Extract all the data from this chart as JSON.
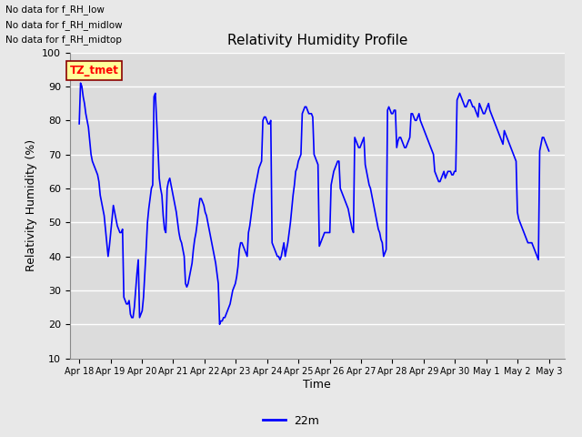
{
  "title": "Relativity Humidity Profile",
  "xlabel": "Time",
  "ylabel": "Relativity Humidity (%)",
  "ylim": [
    10,
    100
  ],
  "yticks": [
    10,
    20,
    30,
    40,
    50,
    60,
    70,
    80,
    90,
    100
  ],
  "line_color": "blue",
  "line_width": 1.2,
  "legend_label": "22m",
  "legend_line_color": "blue",
  "no_data_texts": [
    "No data for f_RH_low",
    "No data for f_RH_midlow",
    "No data for f_RH_midtop"
  ],
  "tz_label": "TZ_tmet",
  "tz_bg_color": "#FFFF99",
  "tz_text_color": "red",
  "bg_color": "#E8E8E8",
  "plot_bg_color": "#DCDCDC",
  "grid_color": "white",
  "tick_dates": [
    "Apr 18",
    "Apr 19",
    "Apr 20",
    "Apr 21",
    "Apr 22",
    "Apr 23",
    "Apr 24",
    "Apr 25",
    "Apr 26",
    "Apr 27",
    "Apr 28",
    "Apr 29",
    "Apr 30",
    "May 1",
    "May 2",
    "May 3"
  ],
  "rh_values": [
    79,
    91,
    90,
    87,
    85,
    82,
    80,
    78,
    74,
    70,
    68,
    67,
    66,
    65,
    64,
    62,
    58,
    56,
    54,
    52,
    48,
    44,
    40,
    43,
    47,
    51,
    55,
    53,
    51,
    49,
    48,
    47,
    47,
    48,
    28,
    27,
    26,
    26,
    27,
    23,
    22,
    22,
    25,
    30,
    35,
    39,
    22,
    23,
    24,
    28,
    35,
    42,
    50,
    54,
    57,
    60,
    61,
    87,
    88,
    80,
    72,
    63,
    60,
    58,
    52,
    48,
    47,
    60,
    62,
    63,
    61,
    59,
    57,
    55,
    53,
    50,
    47,
    45,
    44,
    42,
    40,
    32,
    31,
    32,
    34,
    36,
    38,
    42,
    45,
    47,
    50,
    54,
    57,
    57,
    56,
    55,
    53,
    52,
    50,
    48,
    46,
    44,
    42,
    40,
    38,
    35,
    32,
    20,
    21,
    21,
    22,
    22,
    23,
    24,
    25,
    26,
    28,
    30,
    31,
    32,
    34,
    37,
    42,
    44,
    44,
    43,
    42,
    41,
    40,
    47,
    49,
    52,
    55,
    58,
    60,
    62,
    64,
    66,
    67,
    68,
    80,
    81,
    81,
    80,
    79,
    79,
    80,
    44,
    43,
    42,
    41,
    40,
    40,
    39,
    40,
    42,
    44,
    40,
    42,
    44,
    47,
    50,
    54,
    58,
    61,
    65,
    66,
    68,
    69,
    70,
    82,
    83,
    84,
    84,
    83,
    82,
    82,
    82,
    81,
    70,
    69,
    68,
    67,
    43,
    44,
    45,
    46,
    47,
    47,
    47,
    47,
    47,
    61,
    63,
    65,
    66,
    67,
    68,
    68,
    60,
    59,
    58,
    57,
    56,
    55,
    54,
    52,
    50,
    48,
    47,
    75,
    74,
    73,
    72,
    72,
    73,
    74,
    75,
    67,
    65,
    63,
    61,
    60,
    58,
    56,
    54,
    52,
    50,
    48,
    47,
    45,
    44,
    40,
    41,
    42,
    83,
    84,
    83,
    82,
    82,
    83,
    83,
    72,
    74,
    75,
    75,
    74,
    73,
    72,
    72,
    73,
    74,
    75,
    82,
    82,
    81,
    80,
    80,
    81,
    82,
    80,
    79,
    78,
    77,
    76,
    75,
    74,
    73,
    72,
    71,
    70,
    65,
    64,
    63,
    62,
    62,
    63,
    64,
    65,
    63,
    64,
    65,
    65,
    65,
    64,
    64,
    65,
    65,
    86,
    87,
    88,
    87,
    86,
    85,
    84,
    84,
    85,
    86,
    86,
    85,
    84,
    84,
    83,
    82,
    81,
    85,
    84,
    83,
    82,
    82,
    83,
    84,
    85,
    83,
    82,
    81,
    80,
    79,
    78,
    77,
    76,
    75,
    74,
    73,
    77,
    76,
    75,
    74,
    73,
    72,
    71,
    70,
    69,
    68,
    53,
    51,
    50,
    49,
    48,
    47,
    46,
    45,
    44,
    44,
    44,
    44,
    43,
    42,
    41,
    40,
    39,
    71,
    73,
    75,
    75,
    74,
    73,
    72,
    71
  ]
}
